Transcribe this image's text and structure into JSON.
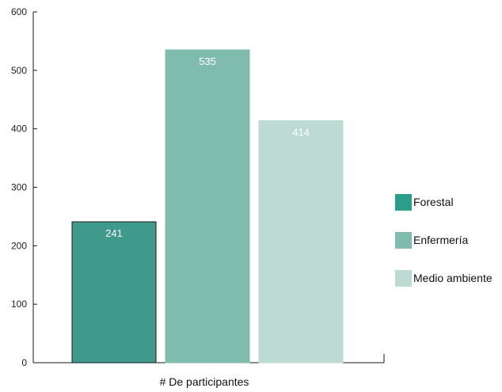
{
  "chart_data": {
    "type": "bar",
    "categories": [
      "# De participantes"
    ],
    "series": [
      {
        "name": "Forestal",
        "values": [
          241
        ],
        "color": "#3f9a8b",
        "border": "#1a1a1a"
      },
      {
        "name": "Enfermería",
        "values": [
          535
        ],
        "color": "#7fbcad",
        "border": "#7fbcad"
      },
      {
        "name": "Medio ambiente",
        "values": [
          414
        ],
        "color": "#bddad3",
        "border": "#bddad3"
      }
    ],
    "title": "",
    "xlabel": "# De participantes",
    "ylabel": "",
    "ylim": [
      0,
      600
    ],
    "yticks": [
      "0",
      "100",
      "200",
      "300",
      "400",
      "500",
      "600"
    ],
    "data_labels": [
      "241",
      "535",
      "414"
    ],
    "grid": false,
    "legend": {
      "placement": "right",
      "items": [
        {
          "label": "Forestal",
          "color": "#2a9d8b"
        },
        {
          "label": "Enfermería",
          "color": "#7fbcad"
        },
        {
          "label": "Medio ambiente",
          "color": "#bddad3"
        }
      ]
    }
  }
}
